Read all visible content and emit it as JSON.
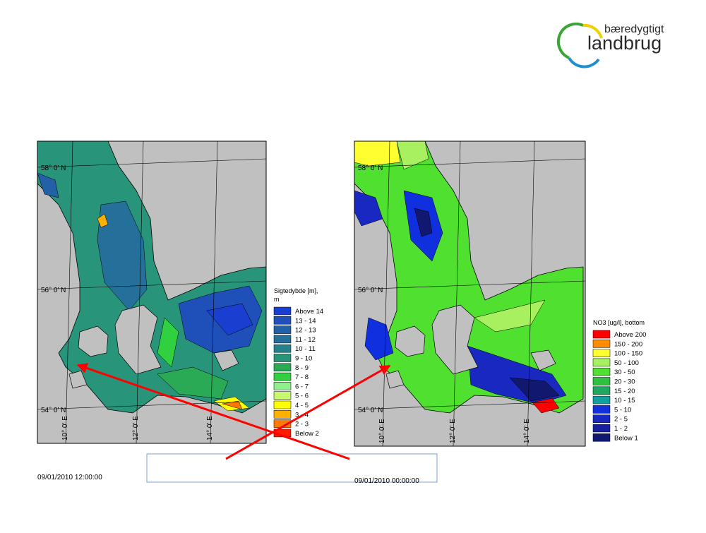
{
  "logo": {
    "line1": "bæredygtigt",
    "line2": "landbrug"
  },
  "maps": [
    {
      "lat_labels": [
        "58° 0' N",
        "56° 0' N",
        "54° 0' N"
      ],
      "lon_labels": [
        "10° 0' E",
        "12° 0' E",
        "14° 0' E"
      ],
      "legend": {
        "title": "Sigtedybde [m],",
        "unit": "m",
        "items": [
          {
            "label": "Above 14",
            "color": "#1a3fd0"
          },
          {
            "label": "13 - 14",
            "color": "#1f4fb8"
          },
          {
            "label": "12 - 13",
            "color": "#2260a8"
          },
          {
            "label": "11 - 12",
            "color": "#24709a"
          },
          {
            "label": "10 - 11",
            "color": "#26808a"
          },
          {
            "label": "9 - 10",
            "color": "#28957a"
          },
          {
            "label": "8 - 9",
            "color": "#2aaa55"
          },
          {
            "label": "7 - 8",
            "color": "#30d040"
          },
          {
            "label": "6 - 7",
            "color": "#90f090"
          },
          {
            "label": "5 - 6",
            "color": "#c8f870"
          },
          {
            "label": "4 - 5",
            "color": "#ffff00"
          },
          {
            "label": "3 - 4",
            "color": "#ffb000"
          },
          {
            "label": "2 - 3",
            "color": "#ff7a00"
          },
          {
            "label": "Below 2",
            "color": "#ff1a00"
          }
        ]
      },
      "timestamp": "09/01/2010 12:00:00"
    },
    {
      "lat_labels": [
        "58° 0' N",
        "56° 0' N",
        "54° 0' N"
      ],
      "lon_labels": [
        "10° 0' E",
        "12° 0' E",
        "14° 0' E"
      ],
      "legend": {
        "title": "NO3 [ug/l], bottom",
        "items": [
          {
            "label": "Above 200",
            "color": "#ff0000"
          },
          {
            "label": "150 - 200",
            "color": "#ff8c00"
          },
          {
            "label": "100 - 150",
            "color": "#ffff30"
          },
          {
            "label": "50 - 100",
            "color": "#a8f060"
          },
          {
            "label": "30 - 50",
            "color": "#50e030"
          },
          {
            "label": "20 - 30",
            "color": "#30c040"
          },
          {
            "label": "15 - 20",
            "color": "#20a860"
          },
          {
            "label": "10 - 15",
            "color": "#10a0a0"
          },
          {
            "label": "5 - 10",
            "color": "#1030e0"
          },
          {
            "label": "2 - 5",
            "color": "#1828c0"
          },
          {
            "label": "1 - 2",
            "color": "#1820a0"
          },
          {
            "label": "Below 1",
            "color": "#101870"
          }
        ]
      },
      "timestamp": "09/01/2010 00:00:00"
    }
  ]
}
